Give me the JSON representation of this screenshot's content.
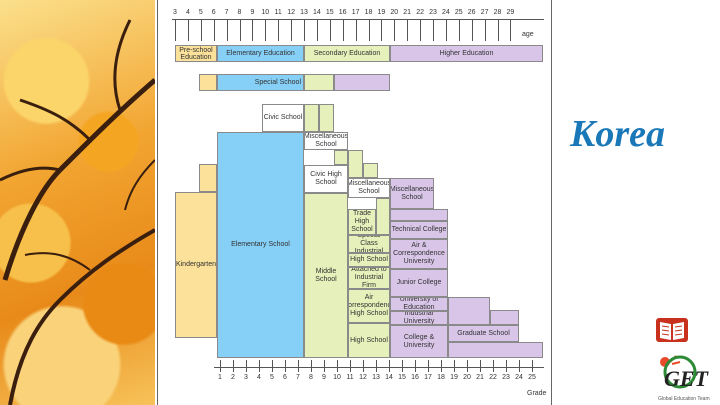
{
  "title": "Korea",
  "ages": {
    "label": "age",
    "values": [
      "3",
      "4",
      "5",
      "6",
      "7",
      "8",
      "9",
      "10",
      "11",
      "12",
      "13",
      "14",
      "15",
      "16",
      "17",
      "18",
      "19",
      "20",
      "21",
      "22",
      "23",
      "24",
      "25",
      "26",
      "27",
      "28",
      "29"
    ]
  },
  "grades": {
    "label": "Grade",
    "values": [
      "1",
      "2",
      "3",
      "4",
      "5",
      "6",
      "7",
      "8",
      "9",
      "10",
      "11",
      "12",
      "13",
      "14",
      "15",
      "16",
      "17",
      "18",
      "19",
      "20",
      "21",
      "22",
      "23",
      "24",
      "25"
    ]
  },
  "stages": {
    "preschool": "Pre-school Education",
    "elementary": "Elementary Education",
    "secondary": "Secondary Education",
    "higher": "Higher Education",
    "special": "Special School"
  },
  "schools": {
    "civic_school": "Civic School",
    "miscellaneous_school_1": "Miscellaneous School",
    "civic_high_school": "Civic High School",
    "miscellaneous_school_2": "Miscellaneous School",
    "miscellaneous_school_3": "Miscellaneous School",
    "kindergarten": "Kindergarten",
    "elementary_school": "Elementary School",
    "middle_school": "Middle School",
    "trade_high_school": "Trade High School",
    "technical_college": "Technical College",
    "special_class_industrial": "Special Class Industrial",
    "air_correspondence_university": "Air & Correspondence University",
    "high_school": "High School",
    "attached_industrial": "Attached to Industrial Firm",
    "junior_college": "Junior College",
    "air_correspondence_high_school": "Air Correspondence High School",
    "university_of_education": "University of Education",
    "industrial_university": "Industrial University",
    "graduate_school": "Graduate School",
    "high_school_2": "High School",
    "college_university": "College & University"
  },
  "logo": {
    "name": "GET",
    "caption": "Global Education Team"
  }
}
